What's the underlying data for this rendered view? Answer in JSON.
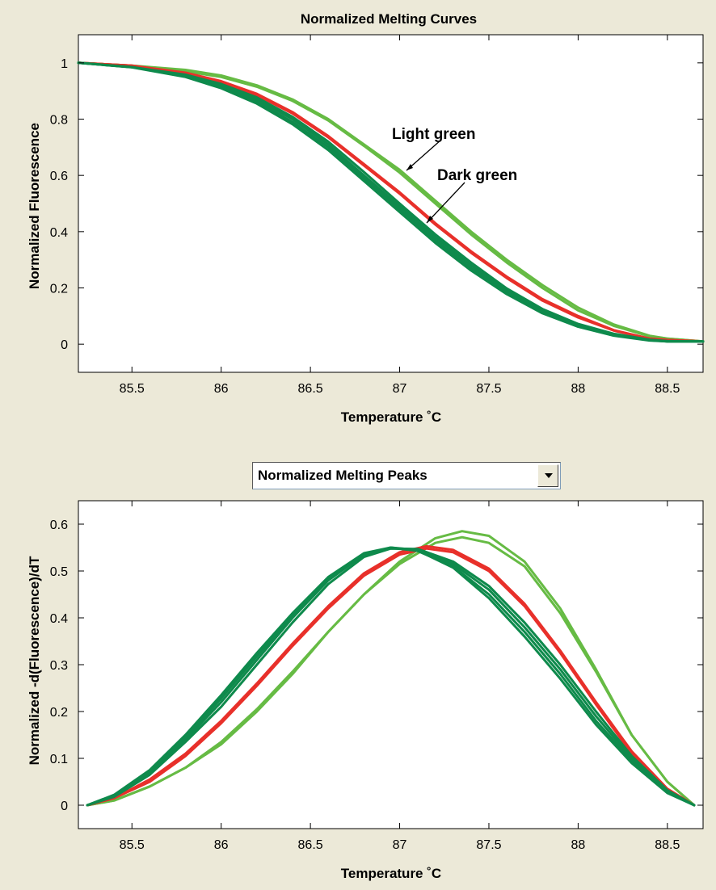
{
  "colors": {
    "light_green": "#66bb44",
    "dark_green": "#0e8a4c",
    "red": "#e8302a",
    "background": "#ece9d8"
  },
  "dropdown": {
    "selected": "Normalized Melting Peaks",
    "icon": "chevron-down-icon"
  },
  "chart_data": [
    {
      "type": "line",
      "title": "Normalized Melting Curves",
      "xlabel": "Temperature ˚C",
      "ylabel": "Normalized Fluorescence",
      "xlim": [
        85.2,
        88.7
      ],
      "ylim": [
        -0.1,
        1.1
      ],
      "xticks": [
        "85.5",
        "86",
        "86.5",
        "87",
        "87.5",
        "88",
        "88.5"
      ],
      "yticks": [
        "0",
        "0.2",
        "0.4",
        "0.6",
        "0.8",
        "1"
      ],
      "grid": false,
      "annotations": [
        {
          "text": "Light green",
          "points_to": [
            87.05,
            0.62
          ]
        },
        {
          "text": "Dark green",
          "points_to": [
            87.12,
            0.44
          ]
        }
      ],
      "series": [
        {
          "color": "light_green",
          "x": [
            85.2,
            85.5,
            85.8,
            86.0,
            86.2,
            86.4,
            86.6,
            86.8,
            87.0,
            87.2,
            87.4,
            87.6,
            87.8,
            88.0,
            88.2,
            88.4,
            88.5,
            88.7
          ],
          "y": [
            1.0,
            0.99,
            0.975,
            0.955,
            0.92,
            0.87,
            0.8,
            0.71,
            0.62,
            0.51,
            0.4,
            0.3,
            0.21,
            0.13,
            0.07,
            0.03,
            0.02,
            0.01
          ]
        },
        {
          "color": "light_green",
          "x": [
            85.2,
            85.5,
            85.8,
            86.0,
            86.2,
            86.4,
            86.6,
            86.8,
            87.0,
            87.2,
            87.4,
            87.6,
            87.8,
            88.0,
            88.2,
            88.4,
            88.5,
            88.7
          ],
          "y": [
            1.0,
            0.99,
            0.97,
            0.95,
            0.915,
            0.865,
            0.795,
            0.705,
            0.61,
            0.5,
            0.39,
            0.29,
            0.2,
            0.12,
            0.065,
            0.028,
            0.02,
            0.01
          ]
        },
        {
          "color": "red",
          "x": [
            85.2,
            85.5,
            85.8,
            86.0,
            86.2,
            86.4,
            86.6,
            86.8,
            87.0,
            87.2,
            87.4,
            87.6,
            87.8,
            88.0,
            88.2,
            88.4,
            88.5,
            88.7
          ],
          "y": [
            1.0,
            0.99,
            0.965,
            0.935,
            0.89,
            0.825,
            0.74,
            0.64,
            0.54,
            0.43,
            0.33,
            0.24,
            0.16,
            0.1,
            0.05,
            0.02,
            0.015,
            0.01
          ]
        },
        {
          "color": "red",
          "x": [
            85.2,
            85.5,
            85.8,
            86.0,
            86.2,
            86.4,
            86.6,
            86.8,
            87.0,
            87.2,
            87.4,
            87.6,
            87.8,
            88.0,
            88.2,
            88.4,
            88.5,
            88.7
          ],
          "y": [
            1.0,
            0.99,
            0.962,
            0.93,
            0.885,
            0.82,
            0.735,
            0.635,
            0.535,
            0.425,
            0.325,
            0.235,
            0.155,
            0.095,
            0.048,
            0.02,
            0.015,
            0.01
          ]
        },
        {
          "color": "dark_green",
          "x": [
            85.2,
            85.5,
            85.8,
            86.0,
            86.2,
            86.4,
            86.6,
            86.8,
            87.0,
            87.2,
            87.4,
            87.6,
            87.8,
            88.0,
            88.2,
            88.4,
            88.5,
            88.7
          ],
          "y": [
            1.0,
            0.985,
            0.955,
            0.92,
            0.87,
            0.8,
            0.71,
            0.6,
            0.49,
            0.38,
            0.28,
            0.19,
            0.12,
            0.07,
            0.035,
            0.015,
            0.01,
            0.01
          ]
        },
        {
          "color": "dark_green",
          "x": [
            85.2,
            85.5,
            85.8,
            86.0,
            86.2,
            86.4,
            86.6,
            86.8,
            87.0,
            87.2,
            87.4,
            87.6,
            87.8,
            88.0,
            88.2,
            88.4,
            88.5,
            88.7
          ],
          "y": [
            1.0,
            0.985,
            0.952,
            0.915,
            0.862,
            0.79,
            0.7,
            0.59,
            0.48,
            0.37,
            0.27,
            0.185,
            0.115,
            0.065,
            0.032,
            0.014,
            0.01,
            0.01
          ]
        },
        {
          "color": "dark_green",
          "x": [
            85.2,
            85.5,
            85.8,
            86.0,
            86.2,
            86.4,
            86.6,
            86.8,
            87.0,
            87.2,
            87.4,
            87.6,
            87.8,
            88.0,
            88.2,
            88.4,
            88.5,
            88.7
          ],
          "y": [
            1.0,
            0.985,
            0.958,
            0.925,
            0.877,
            0.808,
            0.72,
            0.612,
            0.5,
            0.39,
            0.29,
            0.198,
            0.125,
            0.072,
            0.037,
            0.016,
            0.011,
            0.01
          ]
        },
        {
          "color": "dark_green",
          "x": [
            85.2,
            85.5,
            85.8,
            86.0,
            86.2,
            86.4,
            86.6,
            86.8,
            87.0,
            87.2,
            87.4,
            87.6,
            87.8,
            88.0,
            88.2,
            88.4,
            88.5,
            88.7
          ],
          "y": [
            1.0,
            0.984,
            0.95,
            0.91,
            0.855,
            0.782,
            0.69,
            0.58,
            0.47,
            0.36,
            0.262,
            0.178,
            0.11,
            0.062,
            0.03,
            0.013,
            0.01,
            0.01
          ]
        }
      ]
    },
    {
      "type": "line",
      "title": "",
      "xlabel": "Temperature ˚C",
      "ylabel": "Normalized -d(Fluorescence)/dT",
      "xlim": [
        85.2,
        88.7
      ],
      "ylim": [
        -0.05,
        0.65
      ],
      "xticks": [
        "85.5",
        "86",
        "86.5",
        "87",
        "87.5",
        "88",
        "88.5"
      ],
      "yticks": [
        "0",
        "0.1",
        "0.2",
        "0.3",
        "0.4",
        "0.5",
        "0.6"
      ],
      "grid": false,
      "series": [
        {
          "color": "light_green",
          "x": [
            85.25,
            85.4,
            85.6,
            85.8,
            86.0,
            86.2,
            86.4,
            86.6,
            86.8,
            87.0,
            87.2,
            87.35,
            87.5,
            87.7,
            87.9,
            88.1,
            88.3,
            88.5,
            88.65
          ],
          "y": [
            0.0,
            0.01,
            0.04,
            0.08,
            0.13,
            0.2,
            0.28,
            0.37,
            0.45,
            0.52,
            0.57,
            0.585,
            0.575,
            0.52,
            0.42,
            0.29,
            0.15,
            0.05,
            0.0
          ]
        },
        {
          "color": "light_green",
          "x": [
            85.25,
            85.4,
            85.6,
            85.8,
            86.0,
            86.2,
            86.4,
            86.6,
            86.8,
            87.0,
            87.2,
            87.35,
            87.5,
            87.7,
            87.9,
            88.1,
            88.3,
            88.5,
            88.65
          ],
          "y": [
            0.0,
            0.01,
            0.04,
            0.08,
            0.135,
            0.205,
            0.285,
            0.37,
            0.45,
            0.515,
            0.56,
            0.572,
            0.56,
            0.51,
            0.41,
            0.285,
            0.15,
            0.05,
            0.0
          ]
        },
        {
          "color": "red",
          "x": [
            85.25,
            85.4,
            85.6,
            85.8,
            86.0,
            86.2,
            86.4,
            86.6,
            86.8,
            87.0,
            87.15,
            87.3,
            87.5,
            87.7,
            87.9,
            88.1,
            88.3,
            88.5,
            88.65
          ],
          "y": [
            0.0,
            0.015,
            0.055,
            0.11,
            0.18,
            0.26,
            0.345,
            0.425,
            0.495,
            0.54,
            0.553,
            0.545,
            0.505,
            0.43,
            0.33,
            0.22,
            0.115,
            0.035,
            0.0
          ]
        },
        {
          "color": "red",
          "x": [
            85.25,
            85.4,
            85.6,
            85.8,
            86.0,
            86.2,
            86.4,
            86.6,
            86.8,
            87.0,
            87.15,
            87.3,
            87.5,
            87.7,
            87.9,
            88.1,
            88.3,
            88.5,
            88.65
          ],
          "y": [
            0.0,
            0.015,
            0.05,
            0.105,
            0.175,
            0.255,
            0.34,
            0.42,
            0.49,
            0.535,
            0.548,
            0.54,
            0.5,
            0.425,
            0.325,
            0.215,
            0.11,
            0.033,
            0.0
          ]
        },
        {
          "color": "dark_green",
          "x": [
            85.25,
            85.4,
            85.6,
            85.8,
            86.0,
            86.2,
            86.4,
            86.6,
            86.8,
            86.95,
            87.1,
            87.3,
            87.5,
            87.7,
            87.9,
            88.1,
            88.3,
            88.5,
            88.65
          ],
          "y": [
            0.0,
            0.02,
            0.07,
            0.14,
            0.22,
            0.31,
            0.4,
            0.48,
            0.535,
            0.55,
            0.545,
            0.515,
            0.46,
            0.38,
            0.29,
            0.19,
            0.1,
            0.03,
            0.0
          ]
        },
        {
          "color": "dark_green",
          "x": [
            85.25,
            85.4,
            85.6,
            85.8,
            86.0,
            86.2,
            86.4,
            86.6,
            86.8,
            86.95,
            87.1,
            87.3,
            87.5,
            87.7,
            87.9,
            88.1,
            88.3,
            88.5,
            88.65
          ],
          "y": [
            0.0,
            0.022,
            0.075,
            0.15,
            0.235,
            0.325,
            0.41,
            0.487,
            0.538,
            0.55,
            0.543,
            0.51,
            0.45,
            0.37,
            0.28,
            0.18,
            0.095,
            0.028,
            0.0
          ]
        },
        {
          "color": "dark_green",
          "x": [
            85.25,
            85.4,
            85.6,
            85.8,
            86.0,
            86.2,
            86.4,
            86.6,
            86.8,
            86.95,
            87.1,
            87.3,
            87.5,
            87.7,
            87.9,
            88.1,
            88.3,
            88.5,
            88.65
          ],
          "y": [
            0.0,
            0.018,
            0.065,
            0.135,
            0.21,
            0.3,
            0.39,
            0.472,
            0.53,
            0.548,
            0.547,
            0.52,
            0.468,
            0.39,
            0.3,
            0.2,
            0.105,
            0.032,
            0.0
          ]
        },
        {
          "color": "dark_green",
          "x": [
            85.25,
            85.4,
            85.6,
            85.8,
            86.0,
            86.2,
            86.4,
            86.6,
            86.8,
            86.95,
            87.1,
            87.3,
            87.5,
            87.7,
            87.9,
            88.1,
            88.3,
            88.5,
            88.65
          ],
          "y": [
            0.0,
            0.021,
            0.072,
            0.145,
            0.228,
            0.318,
            0.405,
            0.482,
            0.536,
            0.549,
            0.544,
            0.507,
            0.442,
            0.36,
            0.27,
            0.172,
            0.09,
            0.026,
            0.0
          ]
        }
      ]
    }
  ]
}
